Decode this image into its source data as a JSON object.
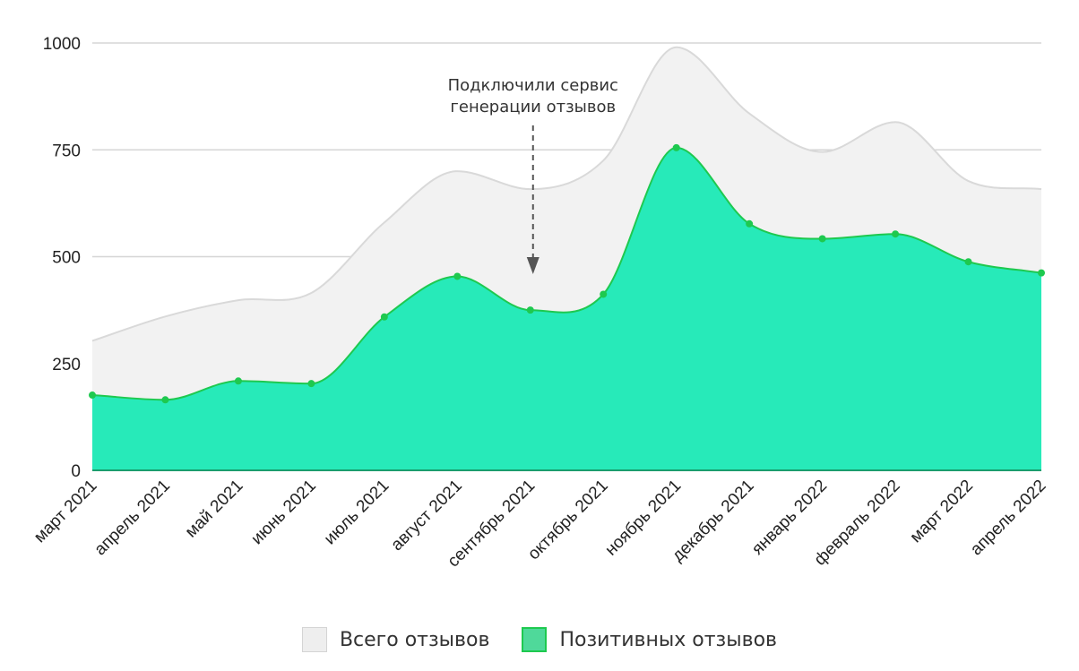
{
  "chart_data": {
    "type": "area",
    "categories": [
      "март 2021",
      "апрель 2021",
      "май 2021",
      "июнь 2021",
      "июль 2021",
      "август 2021",
      "сентябрь 2021",
      "октябрь 2021",
      "ноябрь 2021",
      "декабрь 2021",
      "январь 2022",
      "февраль 2022",
      "март 2022",
      "апрель 2022"
    ],
    "series": [
      {
        "name": "Всего отзывов",
        "color": "#f2f2f2",
        "stroke": "#d9d9d9",
        "values": [
          303,
          360,
          398,
          415,
          580,
          700,
          658,
          725,
          990,
          835,
          745,
          815,
          677,
          658
        ]
      },
      {
        "name": "Позитивных отзывов",
        "color": "#27eab9",
        "stroke": "#1ec94f",
        "values": [
          176,
          165,
          209,
          203,
          359,
          454,
          375,
          412,
          755,
          577,
          542,
          553,
          488,
          462
        ]
      }
    ],
    "yticks": [
      0,
      250,
      500,
      750,
      1000
    ],
    "ylim": [
      0,
      1000
    ],
    "grid": true,
    "legend": "bottom-center",
    "annotation": {
      "lines": [
        "Подключили сервис",
        "генерации отзывов"
      ],
      "category": "сентябрь 2021",
      "arrow": "down"
    }
  }
}
